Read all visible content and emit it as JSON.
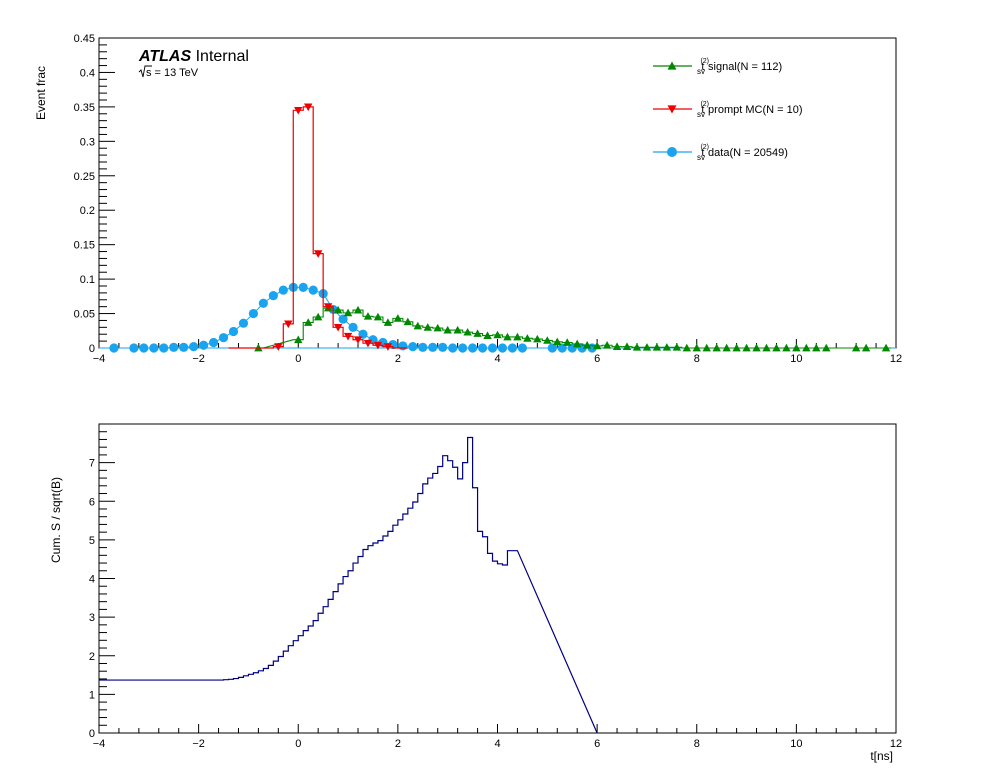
{
  "chart_data": [
    {
      "type": "line",
      "title": "",
      "xlabel": "",
      "ylabel": "Event frac",
      "xlim": [
        -4,
        12
      ],
      "ylim": [
        0,
        0.45
      ],
      "xticks": [
        -4,
        -2,
        0,
        2,
        4,
        6,
        8,
        10,
        12
      ],
      "xtick_labels": [
        "−4",
        "−2",
        "0",
        "2",
        "4",
        "6",
        "8",
        "10",
        "12"
      ],
      "yticks": [
        0,
        0.05,
        0.1,
        0.15,
        0.2,
        0.25,
        0.3,
        0.35,
        0.4,
        0.45
      ],
      "ytick_labels": [
        "0",
        "0.05",
        "0.1",
        "0.15",
        "0.2",
        "0.25",
        "0.3",
        "0.35",
        "0.4",
        "0.45"
      ],
      "annotation": {
        "experiment": "ATLAS",
        "status": "Internal",
        "energy_sqrt": "s",
        "energy_rest": " = 13 TeV"
      },
      "legend_position": "top-right",
      "series": [
        {
          "name": "signal(N = 112)",
          "symbol_base": "t",
          "symbol_sup": "(2)",
          "symbol_sub": "sv",
          "label_rest": " signal(N = 112)",
          "color": "#008800",
          "marker": "triangle-up",
          "x": [
            -0.8,
            0.0,
            0.2,
            0.4,
            0.6,
            0.8,
            1.0,
            1.2,
            1.4,
            1.6,
            1.8,
            2.0,
            2.2,
            2.4,
            2.6,
            2.8,
            3.0,
            3.2,
            3.4,
            3.6,
            3.8,
            4.0,
            4.2,
            4.4,
            4.6,
            4.8,
            5.0,
            5.2,
            5.4,
            5.6,
            5.8,
            6.0,
            6.2,
            6.4,
            6.6,
            6.8,
            7.0,
            7.2,
            7.4,
            7.6,
            7.8,
            8.0,
            8.2,
            8.4,
            8.6,
            8.8,
            9.0,
            9.2,
            9.4,
            9.6,
            9.8,
            10.0,
            10.2,
            10.4,
            10.6,
            11.2,
            11.4,
            11.8
          ],
          "y": [
            0.0,
            0.012,
            0.037,
            0.045,
            0.058,
            0.055,
            0.051,
            0.055,
            0.046,
            0.045,
            0.037,
            0.043,
            0.038,
            0.032,
            0.03,
            0.029,
            0.026,
            0.026,
            0.023,
            0.021,
            0.018,
            0.019,
            0.016,
            0.016,
            0.014,
            0.013,
            0.011,
            0.009,
            0.008,
            0.006,
            0.004,
            0.003,
            0.004,
            0.002,
            0.002,
            0.001,
            0.001,
            0.001,
            0.001,
            0.001,
            0.0,
            0.0,
            0.0,
            0.0,
            0.0,
            0.0,
            0.0,
            0.0,
            0.0,
            0.0,
            0.0,
            0.0,
            0.0,
            0.0,
            0.0,
            0.0,
            0.0,
            0.0
          ]
        },
        {
          "name": "prompt MC(N = 10)",
          "symbol_base": "t",
          "symbol_sup": "(2)",
          "symbol_sub": "sv",
          "label_rest": " prompt MC(N = 10)",
          "color": "#ee0000",
          "marker": "triangle-down",
          "x": [
            -0.4,
            -0.2,
            0.0,
            0.2,
            0.4,
            0.6,
            0.8,
            1.0,
            1.2,
            1.4,
            1.6,
            1.8
          ],
          "y": [
            0.002,
            0.035,
            0.345,
            0.35,
            0.137,
            0.06,
            0.03,
            0.017,
            0.012,
            0.007,
            0.004,
            0.002
          ]
        },
        {
          "name": "data(N = 20549)",
          "symbol_base": "t",
          "symbol_sup": "(2)",
          "symbol_sub": "sv",
          "label_rest": " data(N = 20549)",
          "color": "#1aa3ee",
          "marker": "circle",
          "x": [
            -3.7,
            -3.3,
            -3.1,
            -2.9,
            -2.7,
            -2.5,
            -2.3,
            -2.1,
            -1.9,
            -1.7,
            -1.5,
            -1.3,
            -1.1,
            -0.9,
            -0.7,
            -0.5,
            -0.3,
            -0.1,
            0.1,
            0.3,
            0.5,
            0.7,
            0.9,
            1.1,
            1.3,
            1.5,
            1.7,
            1.9,
            2.1,
            2.3,
            2.5,
            2.7,
            2.9,
            3.1,
            3.3,
            3.5,
            3.7,
            3.9,
            4.1,
            4.3,
            4.5,
            5.1,
            5.3,
            5.5,
            5.7,
            5.9
          ],
          "y": [
            0.0,
            0.0,
            0.0,
            0.0,
            0.0,
            0.001,
            0.001,
            0.002,
            0.004,
            0.008,
            0.015,
            0.024,
            0.036,
            0.05,
            0.065,
            0.076,
            0.084,
            0.088,
            0.088,
            0.084,
            0.079,
            0.056,
            0.042,
            0.03,
            0.02,
            0.012,
            0.008,
            0.005,
            0.003,
            0.002,
            0.001,
            0.001,
            0.001,
            0.0,
            0.0,
            0.0,
            0.0,
            0.0,
            0.0,
            0.0,
            0.0,
            0.0,
            0.0,
            0.0,
            0.0,
            0.0
          ]
        }
      ]
    },
    {
      "type": "line",
      "style": "step",
      "title": "",
      "xlabel": "t[ns]",
      "ylabel": "Cum. S / sqrt(B)",
      "xlim": [
        -4,
        12
      ],
      "ylim": [
        0,
        8
      ],
      "xticks": [
        -4,
        -2,
        0,
        2,
        4,
        6,
        8,
        10,
        12
      ],
      "xtick_labels": [
        "−4",
        "−2",
        "0",
        "2",
        "4",
        "6",
        "8",
        "10",
        "12"
      ],
      "yticks": [
        0,
        1,
        2,
        3,
        4,
        5,
        6,
        7
      ],
      "ytick_labels": [
        "0",
        "1",
        "2",
        "3",
        "4",
        "5",
        "6",
        "7"
      ],
      "color": "#000080",
      "bin_edges_start": -4.0,
      "bin_width": 0.1,
      "x_end": 6.0,
      "values": [
        1.37,
        1.37,
        1.37,
        1.37,
        1.37,
        1.37,
        1.37,
        1.37,
        1.37,
        1.37,
        1.37,
        1.37,
        1.37,
        1.37,
        1.37,
        1.37,
        1.37,
        1.37,
        1.37,
        1.37,
        1.37,
        1.37,
        1.37,
        1.37,
        1.37,
        1.38,
        1.39,
        1.41,
        1.44,
        1.48,
        1.52,
        1.56,
        1.61,
        1.67,
        1.75,
        1.86,
        1.98,
        2.12,
        2.26,
        2.39,
        2.52,
        2.65,
        2.77,
        2.91,
        3.1,
        3.27,
        3.46,
        3.66,
        3.86,
        4.05,
        4.2,
        4.4,
        4.57,
        4.75,
        4.85,
        4.92,
        4.98,
        5.1,
        5.22,
        5.38,
        5.52,
        5.67,
        5.82,
        5.98,
        6.2,
        6.45,
        6.6,
        6.72,
        6.9,
        7.18,
        7.05,
        6.88,
        6.58,
        7.0,
        7.65,
        6.35,
        5.22,
        5.08,
        4.65,
        4.45,
        4.38,
        4.35,
        4.72,
        4.72
      ]
    }
  ]
}
